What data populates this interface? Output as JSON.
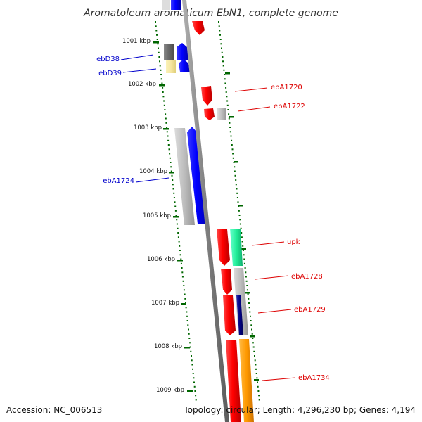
{
  "title": "Aromatoleum aromaticum EbN1, complete genome",
  "accession": "Accession: NC_006513",
  "topology": "Topology: circular; Length: 4,296,230 bp; Genes: 4,194",
  "kbp_labels": [
    "1001 kbp",
    "1002 kbp",
    "1003 kbp",
    "1004 kbp",
    "1005 kbp",
    "1006 kbp",
    "1007 kbp",
    "1008 kbp",
    "1009 kbp"
  ],
  "gene_labels": [
    {
      "name": "ebD38",
      "side": "left",
      "color": "#0000cc"
    },
    {
      "name": "ebD39",
      "side": "left",
      "color": "#0000cc"
    },
    {
      "name": "ebA1724",
      "side": "left",
      "color": "#0000cc"
    },
    {
      "name": "ebA1720",
      "side": "right",
      "color": "#dd0000"
    },
    {
      "name": "ebA1722",
      "side": "right",
      "color": "#dd0000"
    },
    {
      "name": "upk",
      "side": "right",
      "color": "#dd0000"
    },
    {
      "name": "ebA1728",
      "side": "right",
      "color": "#dd0000"
    },
    {
      "name": "ebA1729",
      "side": "right",
      "color": "#dd0000"
    },
    {
      "name": "ebA1734",
      "side": "right",
      "color": "#dd0000"
    }
  ],
  "colors": {
    "backbone": "#888888",
    "forward_gene": "#0000ff",
    "reverse_gene": "#ff0000",
    "gray_feature": "#bbbbbb",
    "dark_gray_feature": "#666666",
    "pale_yellow_feature": "#f5e9a0",
    "green_feature": "#22ee99",
    "navy_feature": "#000080",
    "orange_feature": "#ff9900",
    "tick_green": "#006600"
  }
}
